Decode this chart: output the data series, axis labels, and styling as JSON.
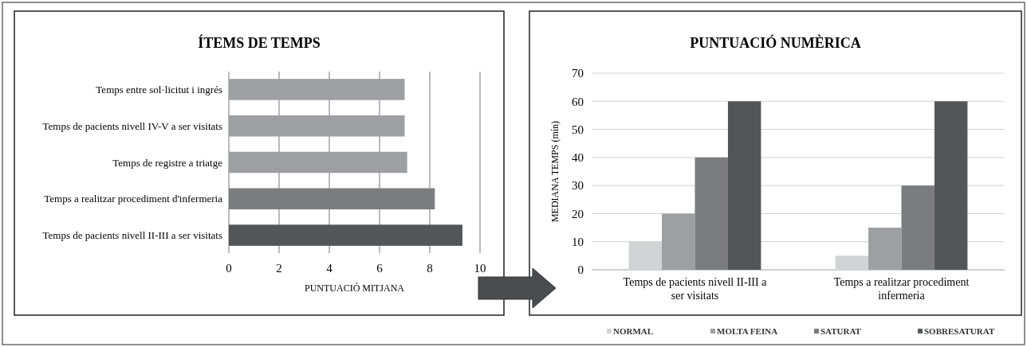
{
  "chart_data": [
    {
      "type": "bar",
      "title": "ÍTEMS DE TEMPS",
      "xlabel": "PUNTUACIÓ MITJANA",
      "orientation": "horizontal",
      "categories": [
        "Temps entre sol·licitut i ingrés",
        "Temps de pacients nivell IV-V a ser visitats",
        "Temps de registre a triatge",
        "Temps a realitzar procediment d'infermeria",
        "Temps de pacients nivell II-III a ser visitats"
      ],
      "values": [
        7.0,
        7.0,
        7.1,
        8.2,
        9.3
      ],
      "colors": [
        "#9d9fa3",
        "#9d9fa3",
        "#9d9fa3",
        "#7b7c80",
        "#535659"
      ],
      "xlim": [
        0,
        10
      ],
      "xticks": [
        0,
        2,
        4,
        6,
        8,
        10
      ],
      "grid": "x"
    },
    {
      "type": "bar",
      "title": "PUNTUACIÓ NUMÈRICA",
      "ylabel": "MEDIANA TEMPS (mín)",
      "categories": [
        "Temps de pacients nivell II-III a ser visitats",
        "Temps a realitzar procediment infermeria"
      ],
      "series": [
        {
          "name": "NORMAL",
          "color": "#d2d3d5",
          "values": [
            10,
            5
          ]
        },
        {
          "name": "MOLTA FEINA",
          "color": "#9d9fa3",
          "values": [
            20,
            15
          ]
        },
        {
          "name": "SATURAT",
          "color": "#7b7c80",
          "values": [
            40,
            30
          ]
        },
        {
          "name": "SOBRESATURAT",
          "color": "#535659",
          "values": [
            60,
            60
          ]
        }
      ],
      "ylim": [
        0,
        70
      ],
      "yticks": [
        0,
        10,
        20,
        30,
        40,
        50,
        60,
        70
      ],
      "grid": "y",
      "legend": "bottom"
    }
  ]
}
